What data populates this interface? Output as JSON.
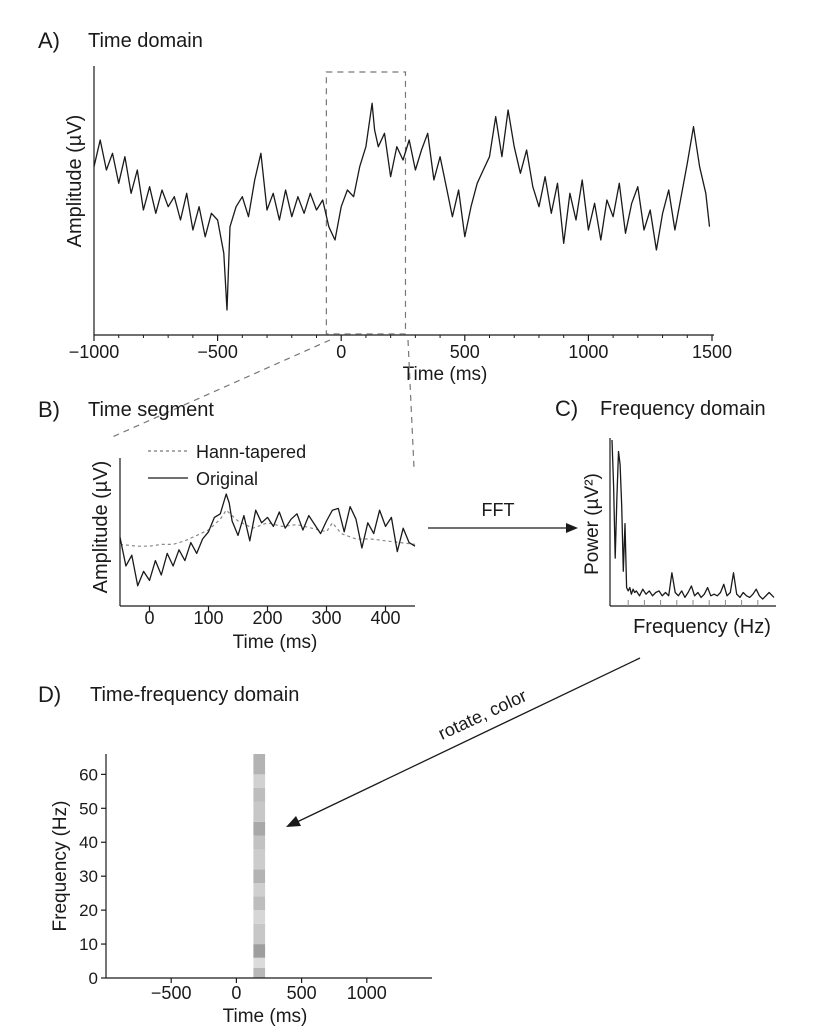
{
  "colors": {
    "ink": "#1a1a1a",
    "dashed": "#777777",
    "band": "#b9b9b9"
  },
  "chart_data": [
    {
      "panel": "A",
      "letter": "A)",
      "title": "Time domain",
      "type": "line",
      "xlabel": "Time (ms)",
      "ylabel": "Amplitude (µV)",
      "xlim": [
        -1000,
        1500
      ],
      "ylim": [
        -3.6,
        3.6
      ],
      "xticks": [
        -1000,
        -500,
        0,
        500,
        1000,
        1500
      ],
      "xtick_labels": [
        "−1000",
        "−500",
        "0",
        "500",
        "1000",
        "1500"
      ],
      "show_yticks": false,
      "selection_box_x": [
        -60,
        260
      ],
      "series": [
        {
          "name": "",
          "style": "solid",
          "x": [
            -1000,
            -975,
            -950,
            -925,
            -900,
            -875,
            -850,
            -825,
            -800,
            -775,
            -750,
            -725,
            -700,
            -675,
            -650,
            -625,
            -600,
            -575,
            -550,
            -525,
            -500,
            -475,
            -462,
            -450,
            -425,
            -400,
            -375,
            -350,
            -325,
            -300,
            -275,
            -250,
            -225,
            -200,
            -175,
            -150,
            -125,
            -100,
            -75,
            -50,
            -25,
            0,
            25,
            50,
            75,
            100,
            125,
            135,
            150,
            175,
            200,
            225,
            250,
            275,
            300,
            325,
            350,
            375,
            400,
            425,
            450,
            475,
            500,
            525,
            550,
            575,
            600,
            625,
            650,
            675,
            700,
            725,
            750,
            775,
            800,
            825,
            850,
            875,
            900,
            925,
            950,
            975,
            1000,
            1025,
            1050,
            1075,
            1100,
            1125,
            1150,
            1175,
            1200,
            1225,
            1250,
            1275,
            1300,
            1325,
            1350,
            1375,
            1400,
            1425,
            1450,
            1475,
            1490
          ],
          "y": [
            1.0,
            1.8,
            0.9,
            1.4,
            0.5,
            1.3,
            0.2,
            0.9,
            -0.3,
            0.4,
            -0.4,
            0.3,
            -0.2,
            0.1,
            -0.6,
            0.2,
            -0.9,
            -0.2,
            -1.1,
            -0.4,
            -0.6,
            -1.6,
            -3.3,
            -0.8,
            -0.2,
            0.1,
            -0.5,
            0.6,
            1.4,
            -0.3,
            0.2,
            -0.6,
            0.3,
            -0.5,
            0.1,
            -0.4,
            0.2,
            -0.3,
            0.0,
            -0.8,
            -1.2,
            -0.2,
            0.3,
            0.1,
            1.0,
            1.6,
            2.9,
            2.1,
            1.6,
            2.0,
            0.7,
            1.6,
            1.2,
            1.8,
            0.9,
            1.5,
            2.0,
            0.6,
            1.3,
            0.4,
            -0.5,
            0.3,
            -1.1,
            -0.2,
            0.5,
            0.9,
            1.3,
            2.5,
            1.3,
            2.7,
            1.6,
            0.8,
            1.5,
            0.4,
            -0.2,
            0.7,
            -0.4,
            0.5,
            -1.3,
            0.2,
            -0.6,
            0.6,
            -0.9,
            -0.1,
            -1.2,
            0.0,
            -0.5,
            0.5,
            -1.0,
            -0.1,
            0.4,
            -0.9,
            -0.3,
            -1.5,
            -0.4,
            0.3,
            -0.9,
            0.1,
            1.1,
            2.2,
            1.0,
            0.2,
            -0.8
          ]
        }
      ]
    },
    {
      "panel": "B",
      "letter": "B)",
      "title": "Time segment",
      "type": "line",
      "xlabel": "Time (ms)",
      "ylabel": "Amplitude (µV)",
      "xlim": [
        -50,
        450
      ],
      "ylim": [
        -3.5,
        3.0
      ],
      "xticks": [
        0,
        100,
        200,
        300,
        400
      ],
      "xtick_labels": [
        "0",
        "100",
        "200",
        "300",
        "400"
      ],
      "show_yticks": false,
      "legend_position": "top-left",
      "series": [
        {
          "name": "Hann-tapered",
          "style": "dashed",
          "x": [
            -50,
            -20,
            0,
            20,
            40,
            60,
            80,
            100,
            120,
            130,
            150,
            175,
            200,
            225,
            250,
            275,
            300,
            310,
            325,
            350,
            375,
            400,
            425,
            450
          ],
          "y": [
            -0.3,
            -0.4,
            -0.4,
            -0.3,
            -0.3,
            -0.1,
            0.2,
            0.5,
            1.1,
            1.6,
            1.0,
            0.6,
            0.9,
            0.7,
            0.8,
            0.6,
            0.4,
            0.9,
            0.3,
            0.0,
            0.0,
            -0.1,
            -0.2,
            -0.3
          ]
        },
        {
          "name": "Original",
          "style": "solid",
          "x": [
            -50,
            -40,
            -30,
            -20,
            -10,
            0,
            10,
            20,
            30,
            40,
            50,
            60,
            70,
            80,
            90,
            100,
            110,
            120,
            130,
            135,
            140,
            150,
            160,
            170,
            180,
            190,
            200,
            210,
            220,
            230,
            240,
            250,
            260,
            270,
            280,
            290,
            300,
            310,
            320,
            330,
            340,
            350,
            360,
            370,
            380,
            390,
            400,
            410,
            420,
            430,
            440,
            450
          ],
          "y": [
            0.1,
            -1.5,
            -0.9,
            -2.6,
            -1.8,
            -2.3,
            -1.2,
            -2.0,
            -0.8,
            -1.5,
            -0.6,
            -1.2,
            -0.2,
            -0.8,
            0.0,
            0.4,
            1.2,
            1.4,
            2.5,
            2.0,
            1.0,
            0.2,
            1.3,
            -0.1,
            1.6,
            0.9,
            1.2,
            0.7,
            1.5,
            0.6,
            1.1,
            1.4,
            0.5,
            1.3,
            0.8,
            0.3,
            1.0,
            1.6,
            1.7,
            0.4,
            1.8,
            1.1,
            -0.5,
            0.9,
            0.3,
            1.6,
            0.7,
            1.2,
            -0.7,
            0.6,
            -0.2,
            -0.4
          ]
        }
      ]
    },
    {
      "panel": "C",
      "letter": "C)",
      "title": "Frequency domain",
      "type": "line",
      "xlabel": "Frequency (Hz)",
      "ylabel": "Power (µV²)",
      "xlim": [
        0,
        100
      ],
      "ylim": [
        0,
        10
      ],
      "show_xtick_labels": false,
      "show_yticks": false,
      "series": [
        {
          "name": "",
          "style": "solid",
          "x": [
            0,
            1,
            2,
            3,
            4,
            5,
            6,
            7,
            8,
            9,
            10,
            11,
            12,
            13,
            14,
            15,
            17,
            19,
            21,
            23,
            25,
            27,
            29,
            31,
            33,
            35,
            37,
            39,
            41,
            43,
            45,
            47,
            49,
            51,
            53,
            55,
            57,
            59,
            61,
            63,
            65,
            67,
            69,
            71,
            73,
            75,
            77,
            79,
            81,
            83,
            85,
            87,
            89,
            91,
            93,
            95,
            97,
            99,
            100
          ],
          "y": [
            10.0,
            7.2,
            2.8,
            6.5,
            9.3,
            8.5,
            6.0,
            2.0,
            4.9,
            1.0,
            0.8,
            1.0,
            0.6,
            0.9,
            0.7,
            0.8,
            0.5,
            0.9,
            0.6,
            0.8,
            0.5,
            0.7,
            0.8,
            0.5,
            0.7,
            0.5,
            1.9,
            0.7,
            0.5,
            0.8,
            0.4,
            0.7,
            1.1,
            0.5,
            0.7,
            0.4,
            0.6,
            1.0,
            0.5,
            0.6,
            0.5,
            0.7,
            1.2,
            0.5,
            0.7,
            1.9,
            0.6,
            0.4,
            0.7,
            0.5,
            0.4,
            0.6,
            0.9,
            0.5,
            0.3,
            0.5,
            0.7,
            0.5,
            0.4
          ]
        }
      ]
    },
    {
      "panel": "D",
      "letter": "D)",
      "title": "Time-frequency domain",
      "type": "heatmap",
      "xlabel": "Time (ms)",
      "ylabel": "Frequency (Hz)",
      "xlim": [
        -1000,
        1500
      ],
      "ylim": [
        0,
        66
      ],
      "xticks": [
        -500,
        0,
        500,
        1000
      ],
      "xtick_labels": [
        "−500",
        "0",
        "500",
        "1000"
      ],
      "yticks": [
        0,
        10,
        20,
        30,
        40,
        50,
        60
      ],
      "ytick_labels": [
        "0",
        "10",
        "20",
        "30",
        "40",
        "50",
        "60"
      ],
      "band_x": [
        130,
        220
      ],
      "band_rows": [
        {
          "f0": 0,
          "f1": 3,
          "shade": 0.72
        },
        {
          "f0": 3,
          "f1": 6,
          "shade": 0.86
        },
        {
          "f0": 6,
          "f1": 10,
          "shade": 0.62
        },
        {
          "f0": 10,
          "f1": 16,
          "shade": 0.78
        },
        {
          "f0": 16,
          "f1": 20,
          "shade": 0.84
        },
        {
          "f0": 20,
          "f1": 24,
          "shade": 0.74
        },
        {
          "f0": 24,
          "f1": 28,
          "shade": 0.81
        },
        {
          "f0": 28,
          "f1": 32,
          "shade": 0.7
        },
        {
          "f0": 32,
          "f1": 38,
          "shade": 0.8
        },
        {
          "f0": 38,
          "f1": 42,
          "shade": 0.76
        },
        {
          "f0": 42,
          "f1": 46,
          "shade": 0.66
        },
        {
          "f0": 46,
          "f1": 52,
          "shade": 0.78
        },
        {
          "f0": 52,
          "f1": 56,
          "shade": 0.74
        },
        {
          "f0": 56,
          "f1": 60,
          "shade": 0.82
        },
        {
          "f0": 60,
          "f1": 66,
          "shade": 0.7
        }
      ]
    }
  ],
  "arrows": {
    "fft_label": "FFT",
    "rotate_label": "rotate, color"
  }
}
